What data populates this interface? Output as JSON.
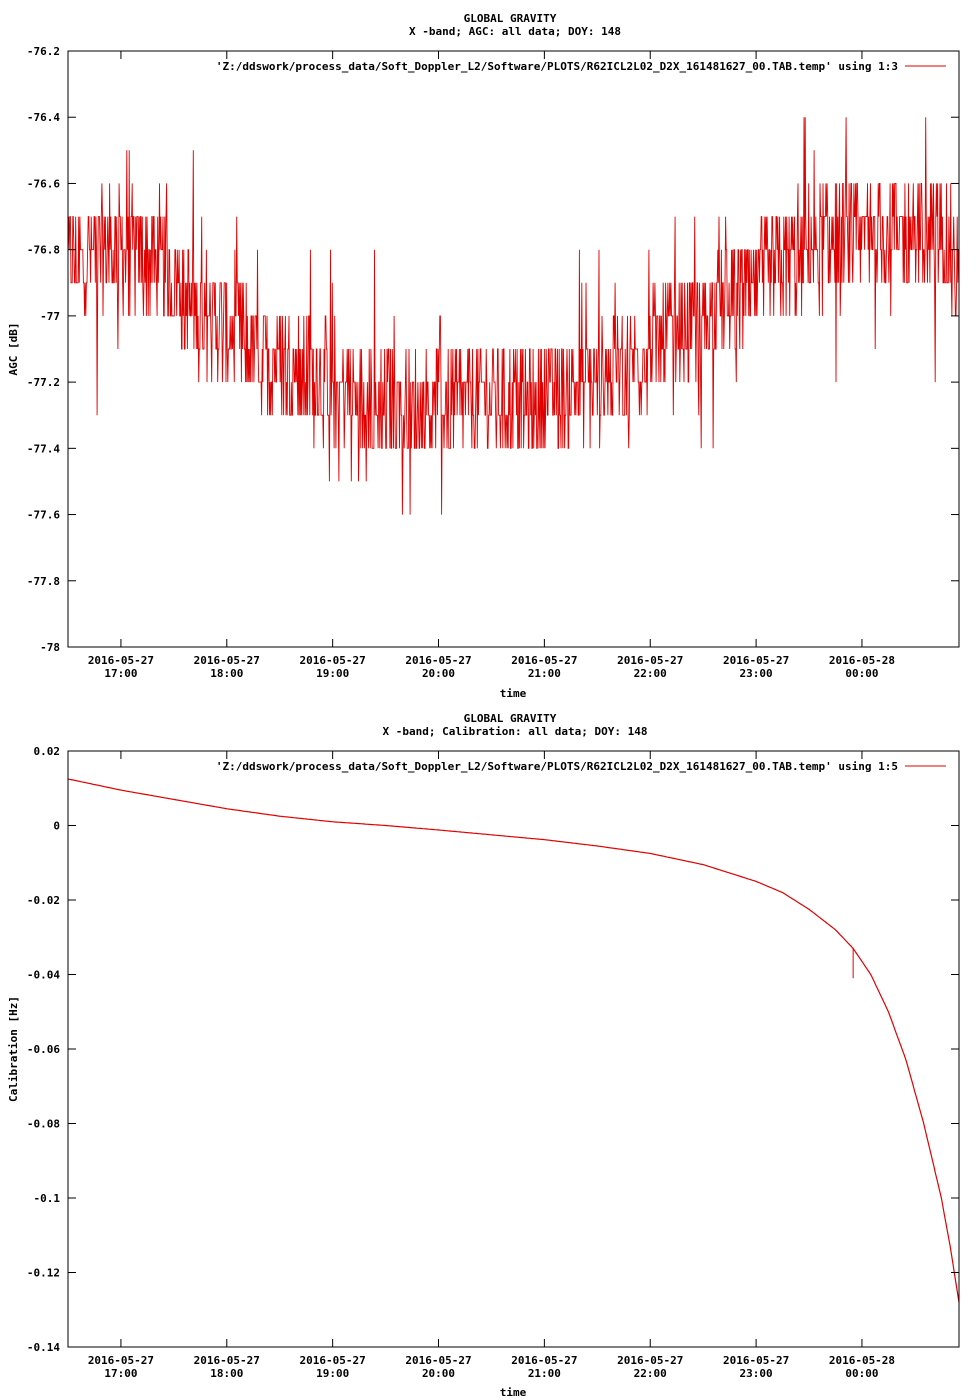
{
  "chart_data": [
    {
      "type": "line",
      "title": "GLOBAL GRAVITY",
      "subtitle": "X -band; AGC: all data; DOY: 148",
      "xlabel": "time",
      "ylabel": "AGC [dB]",
      "ylim": [
        -78,
        -76.2
      ],
      "yticks": [
        -76.2,
        -76.4,
        -76.6,
        -76.8,
        -77,
        -77.2,
        -77.4,
        -77.6,
        -77.8,
        -78
      ],
      "ytick_labels": [
        "-76.2",
        "-76.4",
        "-76.6",
        "-76.8",
        "-77",
        "-77.2",
        "-77.4",
        "-77.6",
        "-77.8",
        "-78"
      ],
      "xlim": [
        "2016-05-27 16:30",
        "2016-05-28 00:55"
      ],
      "xticks": [
        "2016-05-27 17:00",
        "2016-05-27 18:00",
        "2016-05-27 19:00",
        "2016-05-27 20:00",
        "2016-05-27 21:00",
        "2016-05-27 22:00",
        "2016-05-27 23:00",
        "2016-05-28 00:00"
      ],
      "xtick_dates": [
        "2016-05-27",
        "2016-05-27",
        "2016-05-27",
        "2016-05-27",
        "2016-05-27",
        "2016-05-27",
        "2016-05-27",
        "2016-05-28"
      ],
      "xtick_times": [
        "17:00",
        "18:00",
        "19:00",
        "20:00",
        "21:00",
        "22:00",
        "23:00",
        "00:00"
      ],
      "grid": false,
      "legend_position": "top-right",
      "color": "#e00000",
      "series": [
        {
          "name": "'Z:/ddswork/process_data/Soft_Doppler_L2/Software/PLOTS/R62ICL2L02_D2X_161481627_00.TAB.temp' using 1:3",
          "x": [
            "2016-05-27 16:30",
            "2016-05-27 16:45",
            "2016-05-27 17:00",
            "2016-05-27 17:15",
            "2016-05-27 17:30",
            "2016-05-27 17:45",
            "2016-05-27 18:00",
            "2016-05-27 18:15",
            "2016-05-27 18:30",
            "2016-05-27 18:45",
            "2016-05-27 19:00",
            "2016-05-27 19:15",
            "2016-05-27 19:30",
            "2016-05-27 19:45",
            "2016-05-27 20:00",
            "2016-05-27 20:15",
            "2016-05-27 20:30",
            "2016-05-27 20:45",
            "2016-05-27 21:00",
            "2016-05-27 21:15",
            "2016-05-27 21:30",
            "2016-05-27 21:45",
            "2016-05-27 22:00",
            "2016-05-27 22:15",
            "2016-05-27 22:30",
            "2016-05-27 22:45",
            "2016-05-27 23:00",
            "2016-05-27 23:15",
            "2016-05-27 23:30",
            "2016-05-27 23:45",
            "2016-05-28 00:00",
            "2016-05-28 00:15",
            "2016-05-28 00:30",
            "2016-05-28 00:45",
            "2016-05-28 00:55"
          ],
          "y": [
            -76.85,
            -76.8,
            -76.8,
            -76.82,
            -76.9,
            -76.98,
            -77.05,
            -77.1,
            -77.13,
            -77.17,
            -77.2,
            -77.25,
            -77.27,
            -77.28,
            -77.27,
            -77.25,
            -77.25,
            -77.25,
            -77.25,
            -77.2,
            -77.2,
            -77.15,
            -77.1,
            -77.05,
            -77.0,
            -76.95,
            -76.92,
            -76.85,
            -76.8,
            -76.78,
            -76.78,
            -76.75,
            -76.75,
            -76.75,
            -76.85
          ],
          "noise_band": [
            -77.55,
            -76.35
          ]
        }
      ]
    },
    {
      "type": "line",
      "title": "GLOBAL GRAVITY",
      "subtitle": "X -band; Calibration: all data; DOY: 148",
      "xlabel": "time",
      "ylabel": "Calibration [Hz]",
      "ylim": [
        -0.14,
        0.02
      ],
      "yticks": [
        0.02,
        0,
        -0.02,
        -0.04,
        -0.06,
        -0.08,
        -0.1,
        -0.12,
        -0.14
      ],
      "ytick_labels": [
        "0.02",
        "0",
        "-0.02",
        "-0.04",
        "-0.06",
        "-0.08",
        "-0.1",
        "-0.12",
        "-0.14"
      ],
      "xlim": [
        "2016-05-27 16:30",
        "2016-05-28 00:55"
      ],
      "xticks": [
        "2016-05-27 17:00",
        "2016-05-27 18:00",
        "2016-05-27 19:00",
        "2016-05-27 20:00",
        "2016-05-27 21:00",
        "2016-05-27 22:00",
        "2016-05-27 23:00",
        "2016-05-28 00:00"
      ],
      "xtick_dates": [
        "2016-05-27",
        "2016-05-27",
        "2016-05-27",
        "2016-05-27",
        "2016-05-27",
        "2016-05-27",
        "2016-05-27",
        "2016-05-28"
      ],
      "xtick_times": [
        "17:00",
        "18:00",
        "19:00",
        "20:00",
        "21:00",
        "22:00",
        "23:00",
        "00:00"
      ],
      "grid": false,
      "legend_position": "top-right",
      "color": "#e00000",
      "series": [
        {
          "name": "'Z:/ddswork/process_data/Soft_Doppler_L2/Software/PLOTS/R62ICL2L02_D2X_161481627_00.TAB.temp' using 1:5",
          "x": [
            "2016-05-27 16:30",
            "2016-05-27 17:00",
            "2016-05-27 17:30",
            "2016-05-27 18:00",
            "2016-05-27 18:30",
            "2016-05-27 19:00",
            "2016-05-27 19:30",
            "2016-05-27 20:00",
            "2016-05-27 20:30",
            "2016-05-27 21:00",
            "2016-05-27 21:30",
            "2016-05-27 22:00",
            "2016-05-27 22:30",
            "2016-05-27 23:00",
            "2016-05-27 23:15",
            "2016-05-27 23:30",
            "2016-05-27 23:45",
            "2016-05-27 23:55",
            "2016-05-28 00:05",
            "2016-05-28 00:15",
            "2016-05-28 00:25",
            "2016-05-28 00:35",
            "2016-05-28 00:45",
            "2016-05-28 00:50",
            "2016-05-28 00:55"
          ],
          "y": [
            0.0125,
            0.0095,
            0.007,
            0.0045,
            0.0025,
            0.001,
            0.0,
            -0.0012,
            -0.0025,
            -0.0038,
            -0.0055,
            -0.0075,
            -0.0105,
            -0.015,
            -0.018,
            -0.0225,
            -0.028,
            -0.033,
            -0.04,
            -0.05,
            -0.063,
            -0.08,
            -0.1,
            -0.113,
            -0.128
          ],
          "spike": {
            "x": "2016-05-27 23:55",
            "y": -0.041
          }
        }
      ]
    }
  ]
}
